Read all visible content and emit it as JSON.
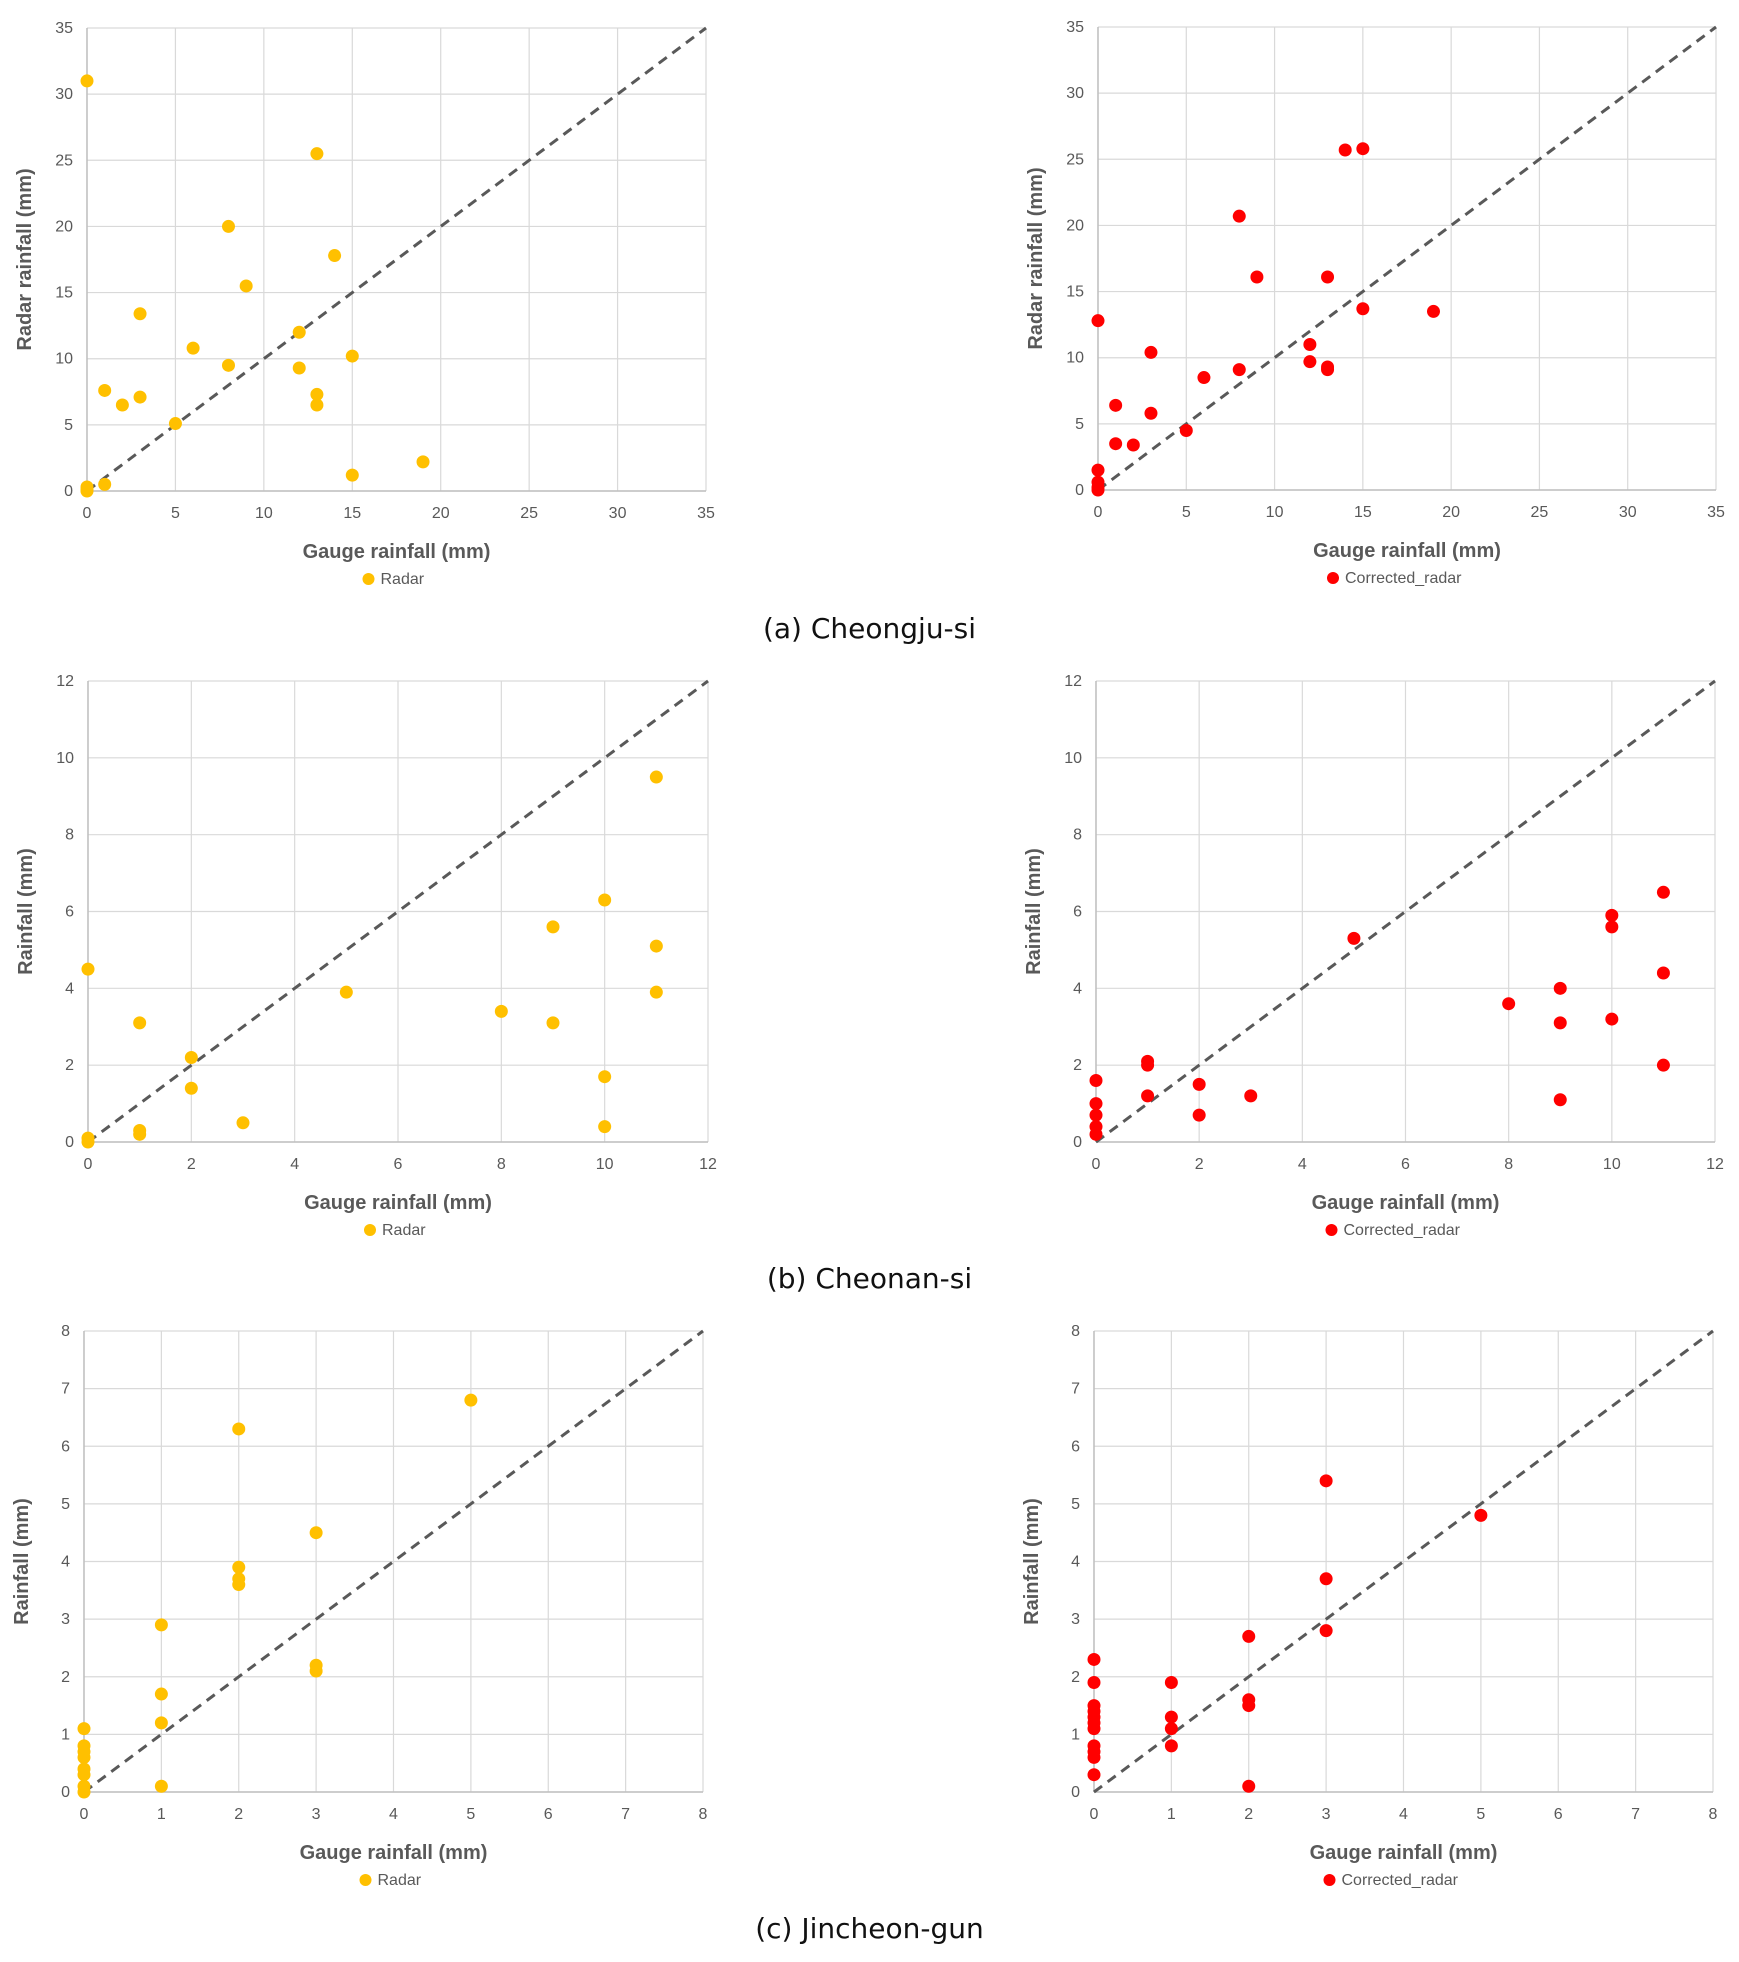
{
  "captions": [
    "(a) Cheongju-si",
    "(b) Cheonan-si",
    "(c) Jincheon-gun"
  ],
  "colors": {
    "radar": "#FFC000",
    "corrected": "#FF0000",
    "grid": "#D9D9D9",
    "axis": "#BFBFBF",
    "diagonal": "#595959",
    "text": "#595959"
  },
  "chart_data": [
    {
      "type": "scatter",
      "panel": "a-left",
      "xlabel": "Gauge rainfall (mm)",
      "ylabel": "Radar rainfall (mm)",
      "xlim": [
        0,
        35
      ],
      "ylim": [
        0,
        35
      ],
      "xticks": [
        0,
        5,
        10,
        15,
        20,
        25,
        30,
        35
      ],
      "yticks": [
        0,
        5,
        10,
        15,
        20,
        25,
        30,
        35
      ],
      "legend": "Radar",
      "color_key": "radar",
      "x": [
        0,
        0,
        0,
        0,
        1,
        1,
        2,
        3,
        3,
        5,
        6,
        8,
        8,
        9,
        12,
        12,
        13,
        13,
        13,
        14,
        15,
        15,
        19
      ],
      "y": [
        31,
        0,
        0.3,
        0.1,
        0.5,
        7.6,
        6.5,
        13.4,
        7.1,
        5.1,
        10.8,
        20,
        9.5,
        15.5,
        12,
        9.3,
        25.5,
        7.3,
        6.5,
        17.8,
        10.2,
        1.2,
        2.2
      ]
    },
    {
      "type": "scatter",
      "panel": "a-right",
      "xlabel": "Gauge rainfall (mm)",
      "ylabel": "Radar rainfall (mm)",
      "xlim": [
        0,
        35
      ],
      "ylim": [
        0,
        35
      ],
      "xticks": [
        0,
        5,
        10,
        15,
        20,
        25,
        30,
        35
      ],
      "yticks": [
        0,
        5,
        10,
        15,
        20,
        25,
        30,
        35
      ],
      "legend": "Corrected_radar",
      "color_key": "corrected",
      "x": [
        0,
        0,
        0,
        0,
        0,
        1,
        1,
        2,
        3,
        3,
        5,
        6,
        8,
        8,
        9,
        12,
        12,
        13,
        13,
        13,
        14,
        15,
        15,
        19
      ],
      "y": [
        12.8,
        1.5,
        0.6,
        0.2,
        0,
        6.4,
        3.5,
        3.4,
        10.4,
        5.8,
        4.5,
        8.5,
        20.7,
        9.1,
        16.1,
        11,
        9.7,
        9.3,
        9.1,
        16.1,
        25.7,
        25.8,
        13.7,
        13.5
      ]
    },
    {
      "type": "scatter",
      "panel": "b-left",
      "xlabel": "Gauge rainfall (mm)",
      "ylabel": "Rainfall (mm)",
      "xlim": [
        0,
        12
      ],
      "ylim": [
        0,
        12
      ],
      "xticks": [
        0,
        2,
        4,
        6,
        8,
        10,
        12
      ],
      "yticks": [
        0,
        2,
        4,
        6,
        8,
        10,
        12
      ],
      "legend": "Radar",
      "color_key": "radar",
      "x": [
        0,
        0,
        0,
        1,
        1,
        1,
        2,
        2,
        3,
        5,
        8,
        9,
        9,
        10,
        10,
        10,
        11,
        11,
        11
      ],
      "y": [
        4.5,
        0.1,
        0,
        3.1,
        0.3,
        0.2,
        2.2,
        1.4,
        0.5,
        3.9,
        3.4,
        5.6,
        3.1,
        6.3,
        1.7,
        0.4,
        9.5,
        5.1,
        3.9
      ]
    },
    {
      "type": "scatter",
      "panel": "b-right",
      "xlabel": "Gauge rainfall (mm)",
      "ylabel": "Rainfall (mm)",
      "xlim": [
        0,
        12
      ],
      "ylim": [
        0,
        12
      ],
      "xticks": [
        0,
        2,
        4,
        6,
        8,
        10,
        12
      ],
      "yticks": [
        0,
        2,
        4,
        6,
        8,
        10,
        12
      ],
      "legend": "Corrected_radar",
      "color_key": "corrected",
      "x": [
        0,
        0,
        0,
        0,
        0,
        1,
        1,
        1,
        2,
        2,
        3,
        5,
        8,
        9,
        9,
        9,
        10,
        10,
        10,
        11,
        11,
        11
      ],
      "y": [
        1.6,
        1,
        0.7,
        0.4,
        0.2,
        2.1,
        2,
        1.2,
        1.5,
        0.7,
        1.2,
        5.3,
        3.6,
        4,
        3.1,
        1.1,
        5.9,
        5.6,
        3.2,
        6.5,
        4.4,
        2
      ]
    },
    {
      "type": "scatter",
      "panel": "c-left",
      "xlabel": "Gauge rainfall (mm)",
      "ylabel": "Rainfall (mm)",
      "xlim": [
        0,
        8
      ],
      "ylim": [
        0,
        8
      ],
      "xticks": [
        0,
        1,
        2,
        3,
        4,
        5,
        6,
        7,
        8
      ],
      "yticks": [
        0,
        1,
        2,
        3,
        4,
        5,
        6,
        7,
        8
      ],
      "legend": "Radar",
      "color_key": "radar",
      "x": [
        0,
        0,
        0,
        0,
        0,
        0,
        0,
        0,
        1,
        1,
        1,
        1,
        2,
        2,
        2,
        2,
        3,
        3,
        3,
        5
      ],
      "y": [
        1.1,
        0.8,
        0.7,
        0.6,
        0.4,
        0.3,
        0.1,
        0,
        2.9,
        1.7,
        1.2,
        0.1,
        6.3,
        3.9,
        3.7,
        3.6,
        4.5,
        2.2,
        2.1,
        6.8
      ]
    },
    {
      "type": "scatter",
      "panel": "c-right",
      "xlabel": "Gauge rainfall (mm)",
      "ylabel": "Rainfall (mm)",
      "xlim": [
        0,
        8
      ],
      "ylim": [
        0,
        8
      ],
      "xticks": [
        0,
        1,
        2,
        3,
        4,
        5,
        6,
        7,
        8
      ],
      "yticks": [
        0,
        1,
        2,
        3,
        4,
        5,
        6,
        7,
        8
      ],
      "legend": "Corrected_radar",
      "color_key": "corrected",
      "x": [
        0,
        0,
        0,
        0,
        0,
        0,
        0,
        0,
        0,
        0,
        0,
        1,
        1,
        1,
        1,
        2,
        2,
        2,
        2,
        3,
        3,
        3,
        5
      ],
      "y": [
        2.3,
        1.9,
        1.5,
        1.4,
        1.3,
        1.2,
        1.1,
        0.8,
        0.7,
        0.6,
        0.3,
        1.9,
        1.3,
        1.1,
        0.8,
        2.7,
        1.6,
        1.5,
        0.1,
        5.4,
        3.7,
        2.8,
        4.8
      ]
    }
  ]
}
